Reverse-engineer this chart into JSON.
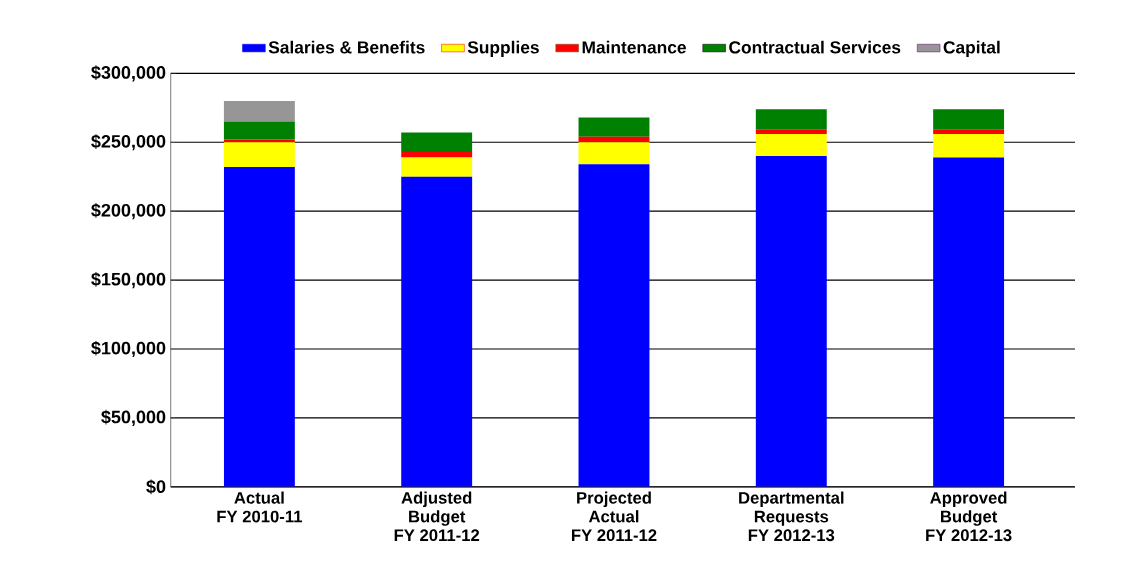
{
  "chart_data": {
    "type": "bar",
    "stacked": true,
    "categories": [
      "Actual\nFY 2010-11",
      "Adjusted\nBudget\nFY 2011-12",
      "Projected\nActual\nFY 2011-12",
      "Departmental\nRequests\nFY 2012-13",
      "Approved\nBudget\nFY 2012-13"
    ],
    "series": [
      {
        "name": "Salaries & Benefits",
        "color": "#0000ff",
        "values": [
          232000,
          225000,
          234000,
          240000,
          239000
        ]
      },
      {
        "name": "Supplies",
        "color": "#ffff00",
        "values": [
          18000,
          14000,
          16000,
          16000,
          17000
        ]
      },
      {
        "name": "Maintenance",
        "color": "#ff0000",
        "values": [
          2000,
          4000,
          4000,
          3000,
          3000
        ]
      },
      {
        "name": "Contractual Services",
        "color": "#008000",
        "values": [
          13000,
          14000,
          14000,
          15000,
          15000
        ]
      },
      {
        "name": "Capital",
        "color": "#969696",
        "values": [
          15000,
          0,
          0,
          0,
          0
        ]
      }
    ],
    "ylim": [
      0,
      300000
    ],
    "yticks": [
      {
        "value": 0,
        "label": "$0"
      },
      {
        "value": 50000,
        "label": "$50,000"
      },
      {
        "value": 100000,
        "label": "$100,000"
      },
      {
        "value": 150000,
        "label": "$150,000"
      },
      {
        "value": 200000,
        "label": "$200,000"
      },
      {
        "value": 250000,
        "label": "$250,000"
      },
      {
        "value": 300000,
        "label": "$300,000"
      }
    ],
    "grid": "y",
    "legend": "top"
  }
}
